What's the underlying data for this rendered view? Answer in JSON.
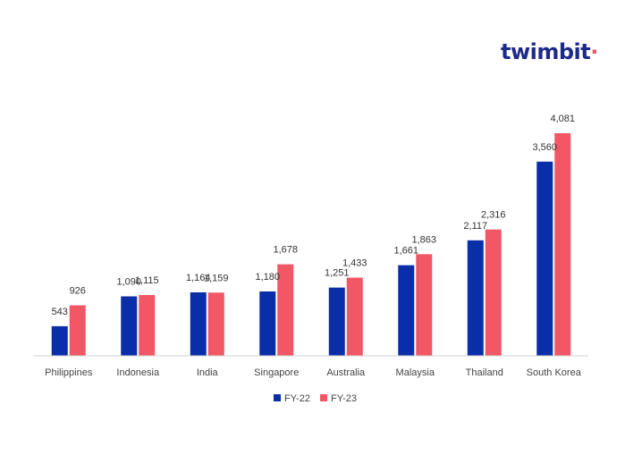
{
  "brand": {
    "logo_text": "twimbit",
    "logo_dot": "·",
    "logo_color": "#1e2a8a",
    "dot_color": "#f05866"
  },
  "chart_data": {
    "type": "bar",
    "categories": [
      "Philippines",
      "Indonesia",
      "India",
      "Singapore",
      "Australia",
      "Malaysia",
      "Thailand",
      "South Korea"
    ],
    "series": [
      {
        "name": "FY-22",
        "color": "#0a2ea8",
        "values": [
          543,
          1090,
          1164,
          1180,
          1251,
          1661,
          2117,
          3560
        ],
        "labels": [
          "543",
          "1,090",
          "1,164",
          "1,180",
          "1,251",
          "1,661",
          "2,117",
          "3,560"
        ]
      },
      {
        "name": "FY-23",
        "color": "#f25765",
        "values": [
          926,
          1115,
          1159,
          1678,
          1433,
          1863,
          2316,
          4081
        ],
        "labels": [
          "926",
          "1,115",
          "1,159",
          "1,678",
          "1,433",
          "1,863",
          "2,316",
          "4,081"
        ]
      }
    ],
    "ylim": [
      0,
      4081
    ],
    "grid": false,
    "legend_position": "bottom"
  }
}
